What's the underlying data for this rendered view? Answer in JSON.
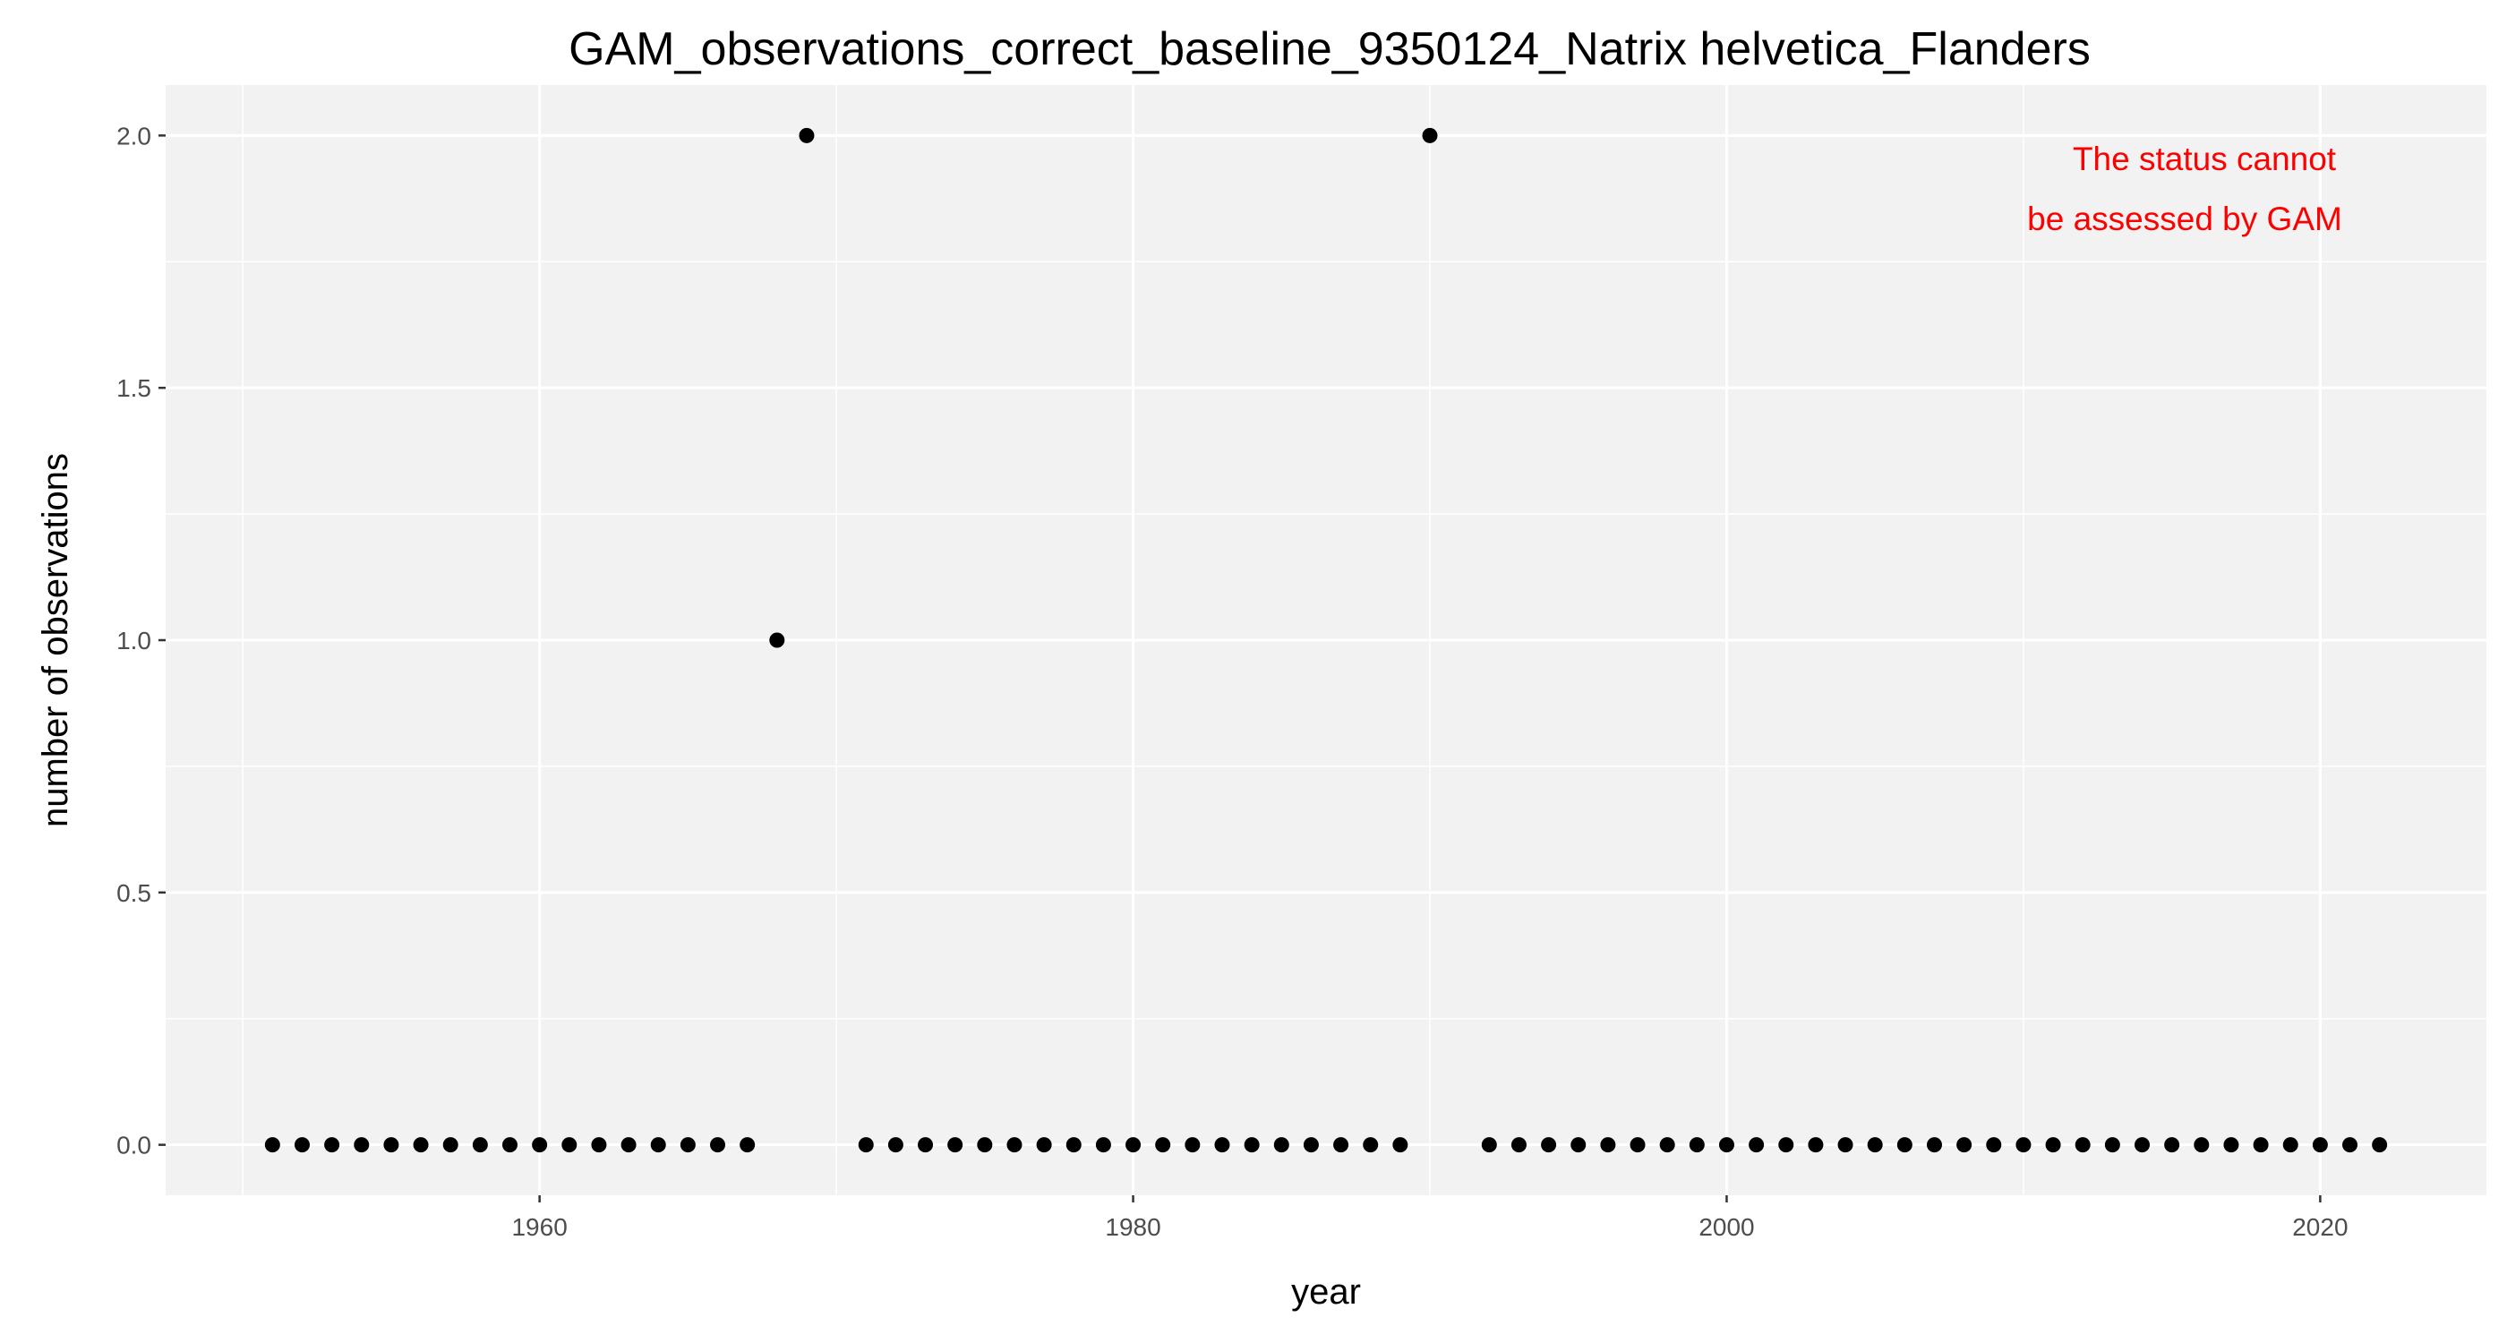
{
  "chart_data": {
    "type": "scatter",
    "title": "GAM_observations_correct_baseline_9350124_Natrix helvetica_Flanders",
    "xlabel": "year",
    "ylabel": "number of observations",
    "xlim": [
      1947.4,
      2025.6
    ],
    "ylim": [
      -0.1,
      2.1
    ],
    "x_ticks": [
      1960,
      1980,
      2000,
      2020
    ],
    "x_tick_labels": [
      "1960",
      "1980",
      "2000",
      "2020"
    ],
    "y_ticks": [
      0,
      0.5,
      1,
      1.5,
      2
    ],
    "y_tick_labels": [
      "0.0",
      "0.5",
      "1.0",
      "1.5",
      "2.0"
    ],
    "grid": true,
    "panel_background": "#f2f2f2",
    "grid_color": "#ffffff",
    "point_color": "#000000",
    "x": [
      1951,
      1952,
      1953,
      1954,
      1955,
      1956,
      1957,
      1958,
      1959,
      1960,
      1961,
      1962,
      1963,
      1964,
      1965,
      1966,
      1967,
      1968,
      1969,
      1971,
      1972,
      1973,
      1974,
      1975,
      1976,
      1977,
      1978,
      1979,
      1980,
      1981,
      1982,
      1983,
      1984,
      1985,
      1986,
      1987,
      1988,
      1989,
      1990,
      1992,
      1993,
      1994,
      1995,
      1996,
      1997,
      1998,
      1999,
      2000,
      2001,
      2002,
      2003,
      2004,
      2005,
      2006,
      2007,
      2008,
      2009,
      2010,
      2011,
      2012,
      2013,
      2014,
      2015,
      2016,
      2017,
      2018,
      2019,
      2020,
      2021,
      2022
    ],
    "y": [
      0,
      0,
      0,
      0,
      0,
      0,
      0,
      0,
      0,
      0,
      0,
      0,
      0,
      0,
      0,
      0,
      0,
      1,
      2,
      0,
      0,
      0,
      0,
      0,
      0,
      0,
      0,
      0,
      0,
      0,
      0,
      0,
      0,
      0,
      0,
      0,
      0,
      0,
      2,
      0,
      0,
      0,
      0,
      0,
      0,
      0,
      0,
      0,
      0,
      0,
      0,
      0,
      0,
      0,
      0,
      0,
      0,
      0,
      0,
      0,
      0,
      0,
      0,
      0,
      0,
      0,
      0,
      0,
      0,
      0
    ],
    "annotation": {
      "lines": [
        "The status cannot",
        "be assessed by GAM"
      ],
      "color": "#ff0000"
    }
  }
}
